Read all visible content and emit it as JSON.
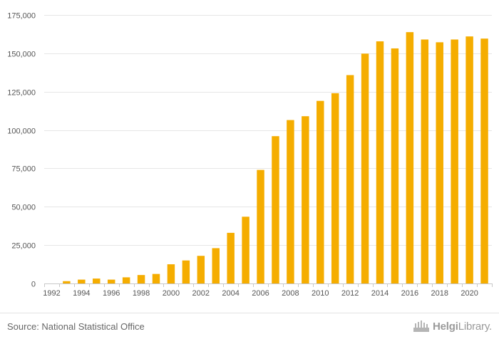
{
  "chart_data": {
    "type": "bar",
    "categories": [
      "1992",
      "1993",
      "1994",
      "1995",
      "1996",
      "1997",
      "1998",
      "1999",
      "2000",
      "2001",
      "2002",
      "2003",
      "2004",
      "2005",
      "2006",
      "2007",
      "2008",
      "2009",
      "2010",
      "2011",
      "2012",
      "2013",
      "2014",
      "2015",
      "2016",
      "2017",
      "2018",
      "2019",
      "2020",
      "2021"
    ],
    "x_tick_labels": [
      "1992",
      "1994",
      "1996",
      "1998",
      "2000",
      "2002",
      "2004",
      "2006",
      "2008",
      "2010",
      "2012",
      "2014",
      "2016",
      "2018",
      "2020"
    ],
    "values": [
      0,
      1500,
      2500,
      3200,
      2500,
      4000,
      5500,
      6200,
      12500,
      15000,
      18000,
      23000,
      33000,
      43500,
      74000,
      96000,
      106500,
      109000,
      119000,
      124000,
      135800,
      149800,
      157800,
      153200,
      163800,
      159000,
      157200,
      159000,
      161000,
      159600
    ],
    "y_ticks": [
      0,
      25000,
      50000,
      75000,
      100000,
      125000,
      150000,
      175000
    ],
    "y_tick_labels": [
      "0",
      "25,000",
      "50,000",
      "75,000",
      "100,000",
      "125,000",
      "150,000",
      "175,000"
    ],
    "ylim": [
      0,
      175000
    ],
    "title": "",
    "xlabel": "",
    "ylabel": "",
    "grid": true,
    "legend": "none",
    "bar_color": "#f5ad00"
  },
  "footer": {
    "source": "Source: National Statistical Office",
    "brand_part1": "Helgi",
    "brand_part2": "Library",
    "brand_part3": "."
  }
}
